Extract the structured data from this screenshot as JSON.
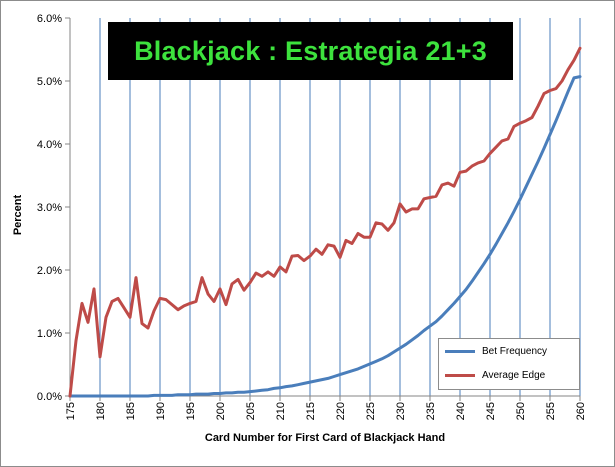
{
  "chart_data": {
    "type": "line",
    "title": "Blackjack : Estrategia 21+3",
    "xlabel": "Card Number for First Card of Blackjack  Hand",
    "ylabel": "Percent",
    "xlim": [
      175,
      260
    ],
    "ylim": [
      0,
      6
    ],
    "x_ticks": [
      "175",
      "180",
      "185",
      "190",
      "195",
      "200",
      "205",
      "210",
      "215",
      "220",
      "225",
      "230",
      "235",
      "240",
      "245",
      "250",
      "255",
      "260"
    ],
    "y_ticks": [
      "0.0%",
      "1.0%",
      "2.0%",
      "3.0%",
      "4.0%",
      "5.0%",
      "6.0%"
    ],
    "grid": "vertical",
    "legend_position": "bottom-right",
    "colors": {
      "title_bg": "#000000",
      "title_text": "#3de23d",
      "grid": "#4a7ebb"
    },
    "series": [
      {
        "name": "Bet Frequency",
        "color": "#4a7ebb",
        "x": [
          175,
          176,
          177,
          178,
          179,
          180,
          181,
          182,
          183,
          184,
          185,
          186,
          187,
          188,
          189,
          190,
          191,
          192,
          193,
          194,
          195,
          196,
          197,
          198,
          199,
          200,
          201,
          202,
          203,
          204,
          205,
          206,
          207,
          208,
          209,
          210,
          211,
          212,
          213,
          214,
          215,
          216,
          217,
          218,
          219,
          220,
          221,
          222,
          223,
          224,
          225,
          226,
          227,
          228,
          229,
          230,
          231,
          232,
          233,
          234,
          235,
          236,
          237,
          238,
          239,
          240,
          241,
          242,
          243,
          244,
          245,
          246,
          247,
          248,
          249,
          250,
          251,
          252,
          253,
          254,
          255,
          256,
          257,
          258,
          259,
          260
        ],
        "y": [
          0,
          0,
          0,
          0,
          0,
          0,
          0,
          0,
          0,
          0,
          0,
          0,
          0,
          0,
          0.01,
          0.01,
          0.01,
          0.01,
          0.02,
          0.02,
          0.02,
          0.03,
          0.03,
          0.03,
          0.04,
          0.04,
          0.05,
          0.05,
          0.06,
          0.06,
          0.07,
          0.08,
          0.09,
          0.1,
          0.12,
          0.13,
          0.15,
          0.16,
          0.18,
          0.2,
          0.22,
          0.24,
          0.26,
          0.28,
          0.31,
          0.34,
          0.37,
          0.4,
          0.43,
          0.47,
          0.51,
          0.55,
          0.59,
          0.64,
          0.7,
          0.76,
          0.82,
          0.89,
          0.96,
          1.04,
          1.11,
          1.18,
          1.27,
          1.37,
          1.47,
          1.58,
          1.69,
          1.82,
          1.96,
          2.1,
          2.25,
          2.41,
          2.58,
          2.75,
          2.93,
          3.12,
          3.32,
          3.52,
          3.72,
          3.93,
          4.15,
          4.37,
          4.6,
          4.83,
          5.05,
          5.07
        ]
      },
      {
        "name": "Average Edge",
        "color": "#be4b48",
        "x": [
          175,
          176,
          177,
          178,
          179,
          180,
          181,
          182,
          183,
          184,
          185,
          186,
          187,
          188,
          189,
          190,
          191,
          192,
          193,
          194,
          195,
          196,
          197,
          198,
          199,
          200,
          201,
          202,
          203,
          204,
          205,
          206,
          207,
          208,
          209,
          210,
          211,
          212,
          213,
          214,
          215,
          216,
          217,
          218,
          219,
          220,
          221,
          222,
          223,
          224,
          225,
          226,
          227,
          228,
          229,
          230,
          231,
          232,
          233,
          234,
          235,
          236,
          237,
          238,
          239,
          240,
          241,
          242,
          243,
          244,
          245,
          246,
          247,
          248,
          249,
          250,
          251,
          252,
          253,
          254,
          255,
          256,
          257,
          258,
          259,
          260
        ],
        "y": [
          0,
          0.88,
          1.47,
          1.17,
          1.7,
          0.62,
          1.25,
          1.5,
          1.55,
          1.4,
          1.25,
          1.88,
          1.15,
          1.08,
          1.35,
          1.55,
          1.53,
          1.45,
          1.37,
          1.43,
          1.47,
          1.5,
          1.88,
          1.62,
          1.5,
          1.7,
          1.45,
          1.78,
          1.85,
          1.68,
          1.8,
          1.95,
          1.9,
          1.97,
          1.9,
          2.05,
          1.97,
          2.22,
          2.23,
          2.15,
          2.22,
          2.33,
          2.25,
          2.4,
          2.38,
          2.2,
          2.47,
          2.42,
          2.58,
          2.52,
          2.52,
          2.75,
          2.73,
          2.63,
          2.75,
          3.05,
          2.92,
          2.97,
          2.97,
          3.13,
          3.15,
          3.17,
          3.35,
          3.38,
          3.33,
          3.55,
          3.57,
          3.65,
          3.7,
          3.73,
          3.85,
          3.95,
          4.05,
          4.08,
          4.28,
          4.33,
          4.37,
          4.42,
          4.6,
          4.8,
          4.85,
          4.88,
          5.0,
          5.18,
          5.33,
          5.52
        ]
      }
    ]
  }
}
